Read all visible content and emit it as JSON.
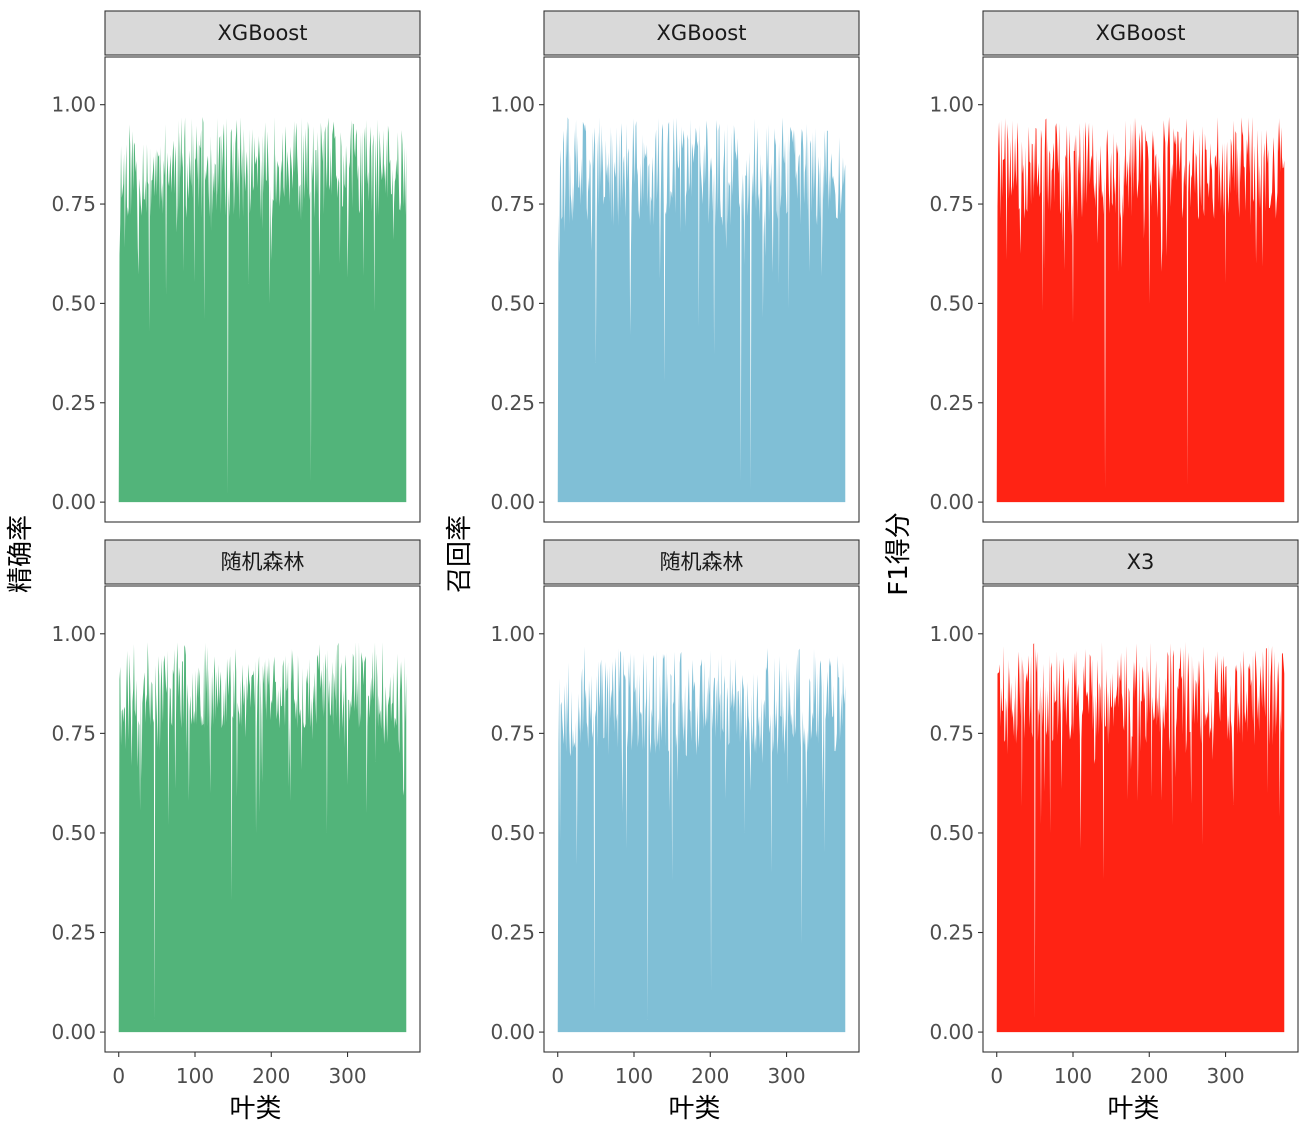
{
  "chart_data": {
    "type": "area",
    "columns": [
      {
        "ylabel": "精确率",
        "xlabel": "叶类",
        "color": "#52b47a",
        "panels": [
          {
            "label": "XGBoost",
            "seed": 11,
            "base": 0.84,
            "spread": 0.13,
            "dips": [
              [
                2,
                0.7
              ],
              [
                8,
                0.64
              ],
              [
                40,
                0.43
              ],
              [
                62,
                0.52
              ],
              [
                85,
                0.58
              ],
              [
                112,
                0.46
              ],
              [
                143,
                0.02
              ],
              [
                170,
                0.55
              ],
              [
                198,
                0.5
              ],
              [
                252,
                0.05
              ],
              [
                290,
                0.6
              ],
              [
                335,
                0.48
              ],
              [
                360,
                0.66
              ]
            ],
            "last": 0.89
          },
          {
            "label": "随机森林",
            "seed": 23,
            "base": 0.87,
            "spread": 0.11,
            "dips": [
              [
                3,
                0.72
              ],
              [
                47,
                0.03
              ],
              [
                65,
                0.52
              ],
              [
                92,
                0.58
              ],
              [
                120,
                0.6
              ],
              [
                148,
                0.33
              ],
              [
                180,
                0.5
              ],
              [
                225,
                0.58
              ],
              [
                273,
                0.5
              ],
              [
                300,
                0.62
              ],
              [
                325,
                0.55
              ],
              [
                368,
                0.7
              ]
            ],
            "last": 0.9
          }
        ]
      },
      {
        "ylabel": "召回率",
        "xlabel": "叶类",
        "color": "#80bfd6",
        "panels": [
          {
            "label": "XGBoost",
            "seed": 37,
            "base": 0.83,
            "spread": 0.14,
            "dips": [
              [
                2,
                0.6
              ],
              [
                9,
                0.68
              ],
              [
                50,
                0.35
              ],
              [
                95,
                0.42
              ],
              [
                140,
                0.3
              ],
              [
                185,
                0.44
              ],
              [
                205,
                0.37
              ],
              [
                240,
                0.05
              ],
              [
                253,
                0.03
              ],
              [
                290,
                0.55
              ],
              [
                330,
                0.58
              ],
              [
                370,
                0.8
              ]
            ],
            "last": 0.85
          },
          {
            "label": "随机森林",
            "seed": 53,
            "base": 0.83,
            "spread": 0.14,
            "dips": [
              [
                3,
                0.48
              ],
              [
                25,
                0.42
              ],
              [
                48,
                0.05
              ],
              [
                90,
                0.46
              ],
              [
                118,
                0.03
              ],
              [
                150,
                0.38
              ],
              [
                201,
                0.1
              ],
              [
                245,
                0.5
              ],
              [
                280,
                0.4
              ],
              [
                320,
                0.22
              ],
              [
                350,
                0.45
              ],
              [
                375,
                0.85
              ]
            ],
            "last": 0.87
          }
        ]
      },
      {
        "ylabel": "F1得分",
        "xlabel": "叶类",
        "color": "#ff2314",
        "panels": [
          {
            "label": "XGBoost",
            "seed": 71,
            "base": 0.84,
            "spread": 0.13,
            "dips": [
              [
                1,
                0.74
              ],
              [
                60,
                0.48
              ],
              [
                100,
                0.45
              ],
              [
                142,
                0.03
              ],
              [
                160,
                0.58
              ],
              [
                200,
                0.5
              ],
              [
                250,
                0.04
              ],
              [
                300,
                0.55
              ],
              [
                340,
                0.6
              ],
              [
                375,
                0.84
              ]
            ],
            "last": 0.86
          },
          {
            "label": "X3",
            "seed": 89,
            "base": 0.85,
            "spread": 0.13,
            "dips": [
              [
                1,
                0.9
              ],
              [
                50,
                0.03
              ],
              [
                70,
                0.5
              ],
              [
                110,
                0.46
              ],
              [
                140,
                0.38
              ],
              [
                185,
                0.58
              ],
              [
                230,
                0.52
              ],
              [
                270,
                0.47
              ],
              [
                310,
                0.57
              ],
              [
                355,
                0.6
              ]
            ],
            "last": 0.9
          }
        ]
      }
    ],
    "n_points": 378,
    "xticks": [
      0,
      100,
      200,
      300
    ],
    "xlim": [
      -18,
      395
    ],
    "yticks": [
      "0.00",
      "0.25",
      "0.50",
      "0.75",
      "1.00"
    ],
    "ylim": [
      -0.05,
      1.12
    ]
  }
}
